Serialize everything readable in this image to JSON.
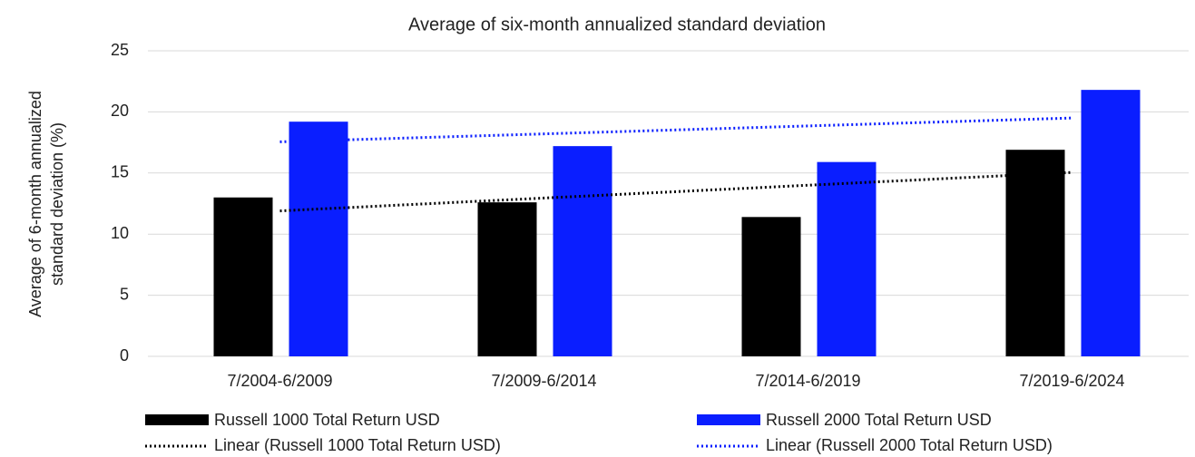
{
  "chart_data": {
    "type": "bar",
    "title": "Average of six-month annualized standard deviation",
    "y_label": [
      "Average of 6-month annualized",
      "standard deviation (%)"
    ],
    "categories": [
      "7/2004-6/2009",
      "7/2009-6/2014",
      "7/2014-6/2019",
      "7/2019-6/2024"
    ],
    "series": [
      {
        "name": "Russell 1000 Total Return USD",
        "color": "#000000",
        "values": [
          13.0,
          12.6,
          11.4,
          16.9
        ]
      },
      {
        "name": "Russell 2000 Total Return USD",
        "color": "#0a1eff",
        "values": [
          19.2,
          17.2,
          15.9,
          21.8
        ]
      }
    ],
    "trendlines": [
      {
        "name": "Linear (Russell 1000 Total Return USD)",
        "color": "#000000",
        "values": [
          11.9,
          12.95,
          14.0,
          15.05
        ]
      },
      {
        "name": "Linear (Russell 2000 Total Return USD)",
        "color": "#0a1eff",
        "values": [
          17.55,
          18.2,
          18.85,
          19.5
        ]
      }
    ],
    "ylim": [
      0,
      25
    ],
    "yticks": [
      0,
      5,
      10,
      15,
      20,
      25
    ],
    "grid": true
  }
}
